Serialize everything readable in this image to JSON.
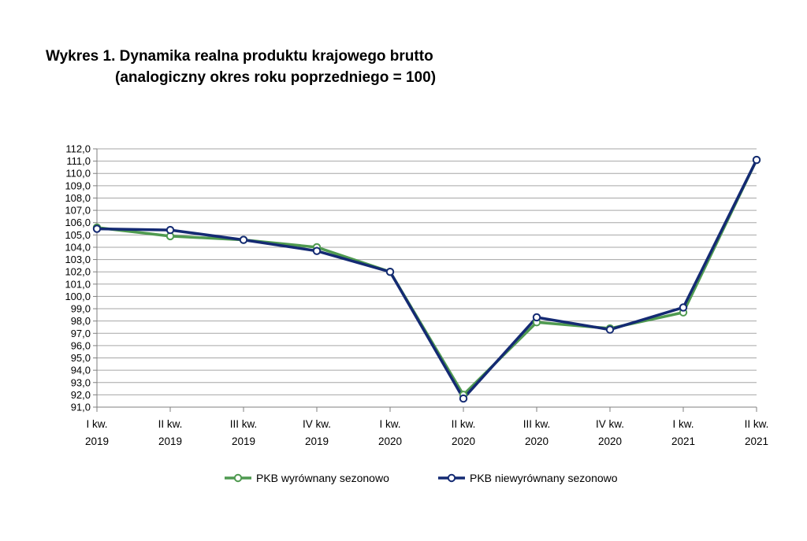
{
  "title_line1": "Wykres 1. Dynamika realna produktu krajowego brutto",
  "title_line2": "(analogiczny okres roku poprzedniego = 100)",
  "chart_data": {
    "type": "line",
    "title": "Wykres 1. Dynamika realna produktu krajowego brutto (analogiczny okres roku poprzedniego = 100)",
    "categories": [
      [
        "I kw.",
        "2019"
      ],
      [
        "II kw.",
        "2019"
      ],
      [
        "III kw.",
        "2019"
      ],
      [
        "IV kw.",
        "2019"
      ],
      [
        "I kw.",
        "2020"
      ],
      [
        "II kw.",
        "2020"
      ],
      [
        "III kw.",
        "2020"
      ],
      [
        "IV kw.",
        "2020"
      ],
      [
        "I kw.",
        "2021"
      ],
      [
        "II kw.",
        "2021"
      ]
    ],
    "ylim": [
      91.0,
      112.0
    ],
    "ystep": 1.0,
    "yticks_decimal_separator": ",",
    "grid": true,
    "legend_position": "bottom",
    "series": [
      {
        "name": "PKB wyrównany sezonowo",
        "color": "#4f9a50",
        "values": [
          105.6,
          104.9,
          104.6,
          104.0,
          102.0,
          92.0,
          97.9,
          97.4,
          98.7,
          111.1
        ]
      },
      {
        "name": "PKB niewyrównany sezonowo",
        "color": "#142a73",
        "values": [
          105.5,
          105.4,
          104.6,
          103.7,
          102.0,
          91.7,
          98.3,
          97.3,
          99.1,
          111.1
        ]
      }
    ]
  }
}
